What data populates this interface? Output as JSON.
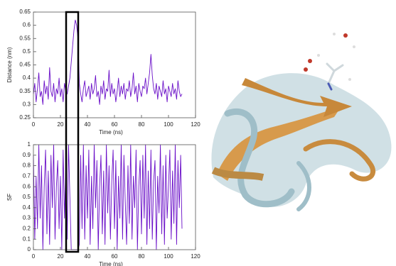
{
  "chart_data": [
    {
      "type": "line",
      "y_label": "Distance (nm)",
      "x_label": "Time (ns)",
      "color": "#6a0fc8",
      "x": [
        0,
        1,
        2,
        3,
        4,
        5,
        6,
        7,
        8,
        9,
        10,
        11,
        12,
        13,
        14,
        15,
        16,
        17,
        18,
        19,
        20,
        21,
        22,
        23,
        24,
        25,
        26,
        27,
        28,
        29,
        30,
        31,
        32,
        33,
        34,
        35,
        36,
        37,
        38,
        39,
        40,
        41,
        42,
        43,
        44,
        45,
        46,
        47,
        48,
        49,
        50,
        51,
        52,
        53,
        54,
        55,
        56,
        57,
        58,
        59,
        60,
        61,
        62,
        63,
        64,
        65,
        66,
        67,
        68,
        69,
        70,
        71,
        72,
        73,
        74,
        75,
        76,
        77,
        78,
        79,
        80,
        81,
        82,
        83,
        84,
        85,
        86,
        87,
        88,
        89,
        90,
        91,
        92,
        93,
        94,
        95,
        96,
        97,
        98,
        99,
        100,
        101,
        102,
        103,
        104,
        105,
        106,
        107,
        108,
        109,
        110
      ],
      "values": [
        0.34,
        0.38,
        0.31,
        0.36,
        0.42,
        0.33,
        0.35,
        0.3,
        0.39,
        0.34,
        0.37,
        0.32,
        0.44,
        0.35,
        0.33,
        0.38,
        0.31,
        0.36,
        0.34,
        0.4,
        0.33,
        0.36,
        0.31,
        0.38,
        0.35,
        0.34,
        0.37,
        0.4,
        0.46,
        0.52,
        0.58,
        0.62,
        0.6,
        0.55,
        0.38,
        0.34,
        0.31,
        0.36,
        0.39,
        0.33,
        0.35,
        0.37,
        0.32,
        0.38,
        0.34,
        0.36,
        0.41,
        0.33,
        0.35,
        0.3,
        0.37,
        0.34,
        0.39,
        0.32,
        0.36,
        0.35,
        0.43,
        0.33,
        0.38,
        0.34,
        0.36,
        0.31,
        0.35,
        0.4,
        0.33,
        0.37,
        0.34,
        0.38,
        0.32,
        0.36,
        0.35,
        0.39,
        0.33,
        0.36,
        0.42,
        0.34,
        0.37,
        0.31,
        0.38,
        0.35,
        0.33,
        0.37,
        0.36,
        0.4,
        0.34,
        0.38,
        0.42,
        0.49,
        0.41,
        0.36,
        0.34,
        0.38,
        0.32,
        0.37,
        0.35,
        0.33,
        0.39,
        0.34,
        0.36,
        0.31,
        0.37,
        0.35,
        0.33,
        0.38,
        0.34,
        0.36,
        0.32,
        0.39,
        0.35,
        0.33,
        0.34
      ],
      "xlim": [
        0,
        120
      ],
      "xticks": [
        0,
        20,
        40,
        60,
        80,
        100,
        120
      ],
      "ylim": [
        0.25,
        0.65
      ],
      "yticks": [
        0.25,
        0.3,
        0.35,
        0.4,
        0.45,
        0.5,
        0.55,
        0.6,
        0.65
      ]
    },
    {
      "type": "line",
      "y_label": "SF",
      "x_label": "Time (ns)",
      "color": "#6a0fc8",
      "x": [
        0,
        1,
        2,
        3,
        4,
        5,
        6,
        7,
        8,
        9,
        10,
        11,
        12,
        13,
        14,
        15,
        16,
        17,
        18,
        19,
        20,
        21,
        22,
        23,
        24,
        25,
        26,
        27,
        28,
        29,
        30,
        31,
        32,
        33,
        34,
        35,
        36,
        37,
        38,
        39,
        40,
        41,
        42,
        43,
        44,
        45,
        46,
        47,
        48,
        49,
        50,
        51,
        52,
        53,
        54,
        55,
        56,
        57,
        58,
        59,
        60,
        61,
        62,
        63,
        64,
        65,
        66,
        67,
        68,
        69,
        70,
        71,
        72,
        73,
        74,
        75,
        76,
        77,
        78,
        79,
        80,
        81,
        82,
        83,
        84,
        85,
        86,
        87,
        88,
        89,
        90,
        91,
        92,
        93,
        94,
        95,
        96,
        97,
        98,
        99,
        100,
        101,
        102,
        103,
        104,
        105,
        106,
        107,
        108,
        109,
        110
      ],
      "values": [
        0.9,
        0.1,
        0.7,
        0.2,
        1,
        0.3,
        0.8,
        0,
        0.6,
        0.95,
        0.15,
        0.75,
        0.05,
        0.9,
        0.4,
        1,
        0.1,
        0.6,
        0.85,
        0.2,
        0.7,
        0,
        0.95,
        0.3,
        0.8,
        0.1,
        1,
        0.5,
        0,
        0,
        0,
        0,
        0,
        0,
        0.05,
        0.9,
        0.2,
        1,
        0.1,
        0.8,
        0.3,
        0.95,
        0.05,
        0.7,
        0.2,
        1,
        0.4,
        0.85,
        0,
        0.6,
        0.9,
        0.15,
        0.75,
        0.05,
        1,
        0.35,
        0.8,
        0.1,
        0.65,
        0.95,
        0.2,
        0.85,
        0,
        0.7,
        0.3,
        1,
        0.1,
        0.9,
        0.45,
        0.05,
        0.8,
        0.25,
        1,
        0.1,
        0.7,
        0.4,
        0.95,
        0,
        0.6,
        0.85,
        0.15,
        0.9,
        0.3,
        1,
        0.05,
        0.75,
        0.2,
        0.95,
        0.1,
        0.65,
        0.85,
        0,
        0.7,
        0.35,
        1,
        0.15,
        0.8,
        0.05,
        0.9,
        0.3,
        0.6,
        0.95,
        0.1,
        0.75,
        0.25,
        1,
        0.05,
        0.85,
        0.4,
        0.9,
        0.2
      ],
      "xlim": [
        0,
        120
      ],
      "xticks": [
        0,
        20,
        40,
        60,
        80,
        100,
        120
      ],
      "ylim": [
        0,
        1
      ],
      "yticks": [
        0,
        0.1,
        0.2,
        0.3,
        0.4,
        0.5,
        0.6,
        0.7,
        0.8,
        0.9,
        1
      ]
    }
  ]
}
